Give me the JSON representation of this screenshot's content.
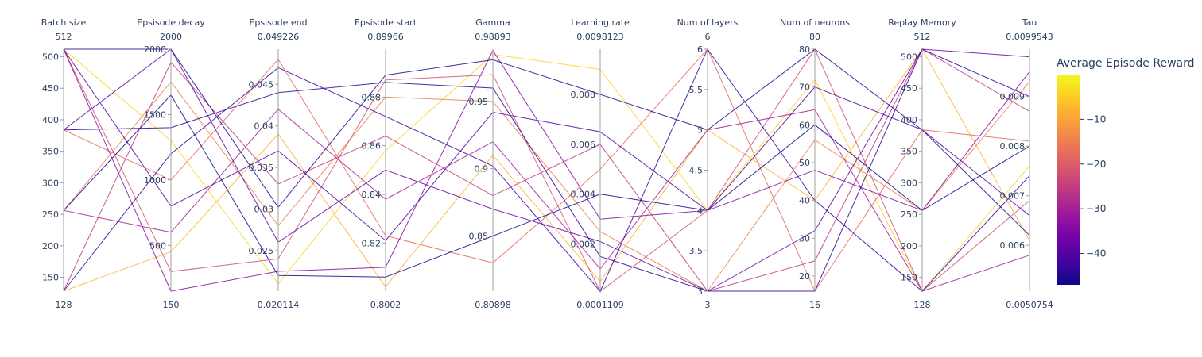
{
  "chart_data": {
    "type": "parallel_coordinates",
    "colorbar": {
      "title": "Average Episode Reward",
      "ticks": [
        "−10",
        "−20",
        "−30",
        "−40"
      ],
      "tick_values": [
        -10,
        -20,
        -30,
        -40
      ],
      "range": [
        -47,
        0
      ],
      "colorscale": [
        "#0d0887",
        "#46039f",
        "#7201a8",
        "#9c179e",
        "#bd3786",
        "#d8576b",
        "#ed7953",
        "#fb9f3a",
        "#fdca26",
        "#f0f921"
      ]
    },
    "dimensions": [
      {
        "label": "Batch size",
        "range": [
          128,
          512
        ],
        "max_label": "512",
        "min_label": "128",
        "ticks": [
          {
            "v": 150,
            "t": "150"
          },
          {
            "v": 200,
            "t": "200"
          },
          {
            "v": 250,
            "t": "250"
          },
          {
            "v": 300,
            "t": "300"
          },
          {
            "v": 350,
            "t": "350"
          },
          {
            "v": 400,
            "t": "400"
          },
          {
            "v": 450,
            "t": "450"
          },
          {
            "v": 500,
            "t": "500"
          }
        ]
      },
      {
        "label": "Epsisode decay",
        "range": [
          150,
          2000
        ],
        "max_label": "2000",
        "min_label": "150",
        "ticks": [
          {
            "v": 500,
            "t": "500"
          },
          {
            "v": 1000,
            "t": "1000"
          },
          {
            "v": 1500,
            "t": "1500"
          },
          {
            "v": 2000,
            "t": "2000"
          }
        ]
      },
      {
        "label": "Epsisode end",
        "range": [
          0.020114,
          0.049226
        ],
        "max_label": "0.049226",
        "min_label": "0.020114",
        "ticks": [
          {
            "v": 0.025,
            "t": "0.025"
          },
          {
            "v": 0.03,
            "t": "0.03"
          },
          {
            "v": 0.035,
            "t": "0.035"
          },
          {
            "v": 0.04,
            "t": "0.04"
          },
          {
            "v": 0.045,
            "t": "0.045"
          }
        ]
      },
      {
        "label": "Epsisode start",
        "range": [
          0.8002,
          0.89966
        ],
        "max_label": "0.89966",
        "min_label": "0.8002",
        "ticks": [
          {
            "v": 0.82,
            "t": "0.82"
          },
          {
            "v": 0.84,
            "t": "0.84"
          },
          {
            "v": 0.86,
            "t": "0.86"
          },
          {
            "v": 0.88,
            "t": "0.88"
          }
        ]
      },
      {
        "label": "Gamma",
        "range": [
          0.80898,
          0.98893
        ],
        "max_label": "0.98893",
        "min_label": "0.80898",
        "ticks": [
          {
            "v": 0.85,
            "t": "0.85"
          },
          {
            "v": 0.9,
            "t": "0.9"
          },
          {
            "v": 0.95,
            "t": "0.95"
          }
        ]
      },
      {
        "label": "Learning rate",
        "range": [
          0.0001109,
          0.0098123
        ],
        "max_label": "0.0098123",
        "min_label": "0.0001109",
        "ticks": [
          {
            "v": 0.002,
            "t": "0.002"
          },
          {
            "v": 0.004,
            "t": "0.004"
          },
          {
            "v": 0.006,
            "t": "0.006"
          },
          {
            "v": 0.008,
            "t": "0.008"
          }
        ]
      },
      {
        "label": "Num of layers",
        "range": [
          3,
          6
        ],
        "max_label": "6",
        "min_label": "3",
        "ticks": [
          {
            "v": 3,
            "t": "3"
          },
          {
            "v": 3.5,
            "t": "3.5"
          },
          {
            "v": 4,
            "t": "4"
          },
          {
            "v": 4.5,
            "t": "4.5"
          },
          {
            "v": 5,
            "t": "5"
          },
          {
            "v": 5.5,
            "t": "5.5"
          },
          {
            "v": 6,
            "t": "6"
          }
        ]
      },
      {
        "label": "Num of neurons",
        "range": [
          16,
          80
        ],
        "max_label": "80",
        "min_label": "16",
        "ticks": [
          {
            "v": 20,
            "t": "20"
          },
          {
            "v": 30,
            "t": "30"
          },
          {
            "v": 40,
            "t": "40"
          },
          {
            "v": 50,
            "t": "50"
          },
          {
            "v": 60,
            "t": "60"
          },
          {
            "v": 70,
            "t": "70"
          },
          {
            "v": 80,
            "t": "80"
          }
        ]
      },
      {
        "label": "Replay Memory",
        "range": [
          128,
          512
        ],
        "max_label": "512",
        "min_label": "128",
        "ticks": [
          {
            "v": 150,
            "t": "150"
          },
          {
            "v": 200,
            "t": "200"
          },
          {
            "v": 250,
            "t": "250"
          },
          {
            "v": 300,
            "t": "300"
          },
          {
            "v": 350,
            "t": "350"
          },
          {
            "v": 400,
            "t": "400"
          },
          {
            "v": 450,
            "t": "450"
          },
          {
            "v": 500,
            "t": "500"
          }
        ]
      },
      {
        "label": "Tau",
        "range": [
          0.0050754,
          0.0099543
        ],
        "max_label": "0.0099543",
        "min_label": "0.0050754",
        "ticks": [
          {
            "v": 0.006,
            "t": "0.006"
          },
          {
            "v": 0.007,
            "t": "0.007"
          },
          {
            "v": 0.008,
            "t": "0.008"
          },
          {
            "v": 0.009,
            "t": "0.009"
          }
        ]
      }
    ],
    "lines": [
      {
        "reward": -45,
        "values": [
          512,
          2000,
          0.0302,
          0.889,
          0.981,
          0.008,
          5,
          80,
          384,
          0.0062
        ]
      },
      {
        "reward": -44,
        "values": [
          384,
          1400,
          0.044,
          0.886,
          0.96,
          0.0015,
          3,
          16,
          512,
          0.009
        ]
      },
      {
        "reward": -46,
        "values": [
          256,
          1650,
          0.022,
          0.806,
          0.85,
          0.004,
          4,
          60,
          256,
          0.008
        ]
      },
      {
        "reward": -43,
        "values": [
          128,
          1200,
          0.047,
          0.872,
          0.902,
          0.0001,
          6,
          40,
          128,
          0.0074
        ]
      },
      {
        "reward": -41,
        "values": [
          512,
          800,
          0.037,
          0.821,
          0.942,
          0.0065,
          4,
          70,
          384,
          0.0066
        ]
      },
      {
        "reward": -38,
        "values": [
          384,
          2000,
          0.026,
          0.85,
          0.87,
          0.0021,
          3,
          32,
          512,
          0.0098
        ]
      },
      {
        "reward": -34,
        "values": [
          512,
          150,
          0.0225,
          0.81,
          0.988,
          0.003,
          4,
          48,
          256,
          0.0095
        ]
      },
      {
        "reward": -30,
        "values": [
          256,
          600,
          0.042,
          0.838,
          0.92,
          0.001,
          5,
          64,
          128,
          0.0058
        ]
      },
      {
        "reward": -26,
        "values": [
          128,
          1900,
          0.033,
          0.864,
          0.88,
          0.006,
          3,
          24,
          512,
          0.0087
        ]
      },
      {
        "reward": -22,
        "values": [
          512,
          300,
          0.024,
          0.887,
          0.97,
          0.0001,
          4,
          80,
          128,
          0.0069
        ]
      },
      {
        "reward": -18,
        "values": [
          384,
          1000,
          0.048,
          0.823,
          0.83,
          0.005,
          6,
          16,
          384,
          0.0081
        ]
      },
      {
        "reward": -15,
        "values": [
          256,
          1750,
          0.028,
          0.88,
          0.95,
          0.0025,
          3,
          56,
          256,
          0.0093
        ]
      },
      {
        "reward": -8,
        "values": [
          128,
          450,
          0.039,
          0.802,
          0.91,
          0.0005,
          5,
          40,
          512,
          0.0061
        ]
      },
      {
        "reward": -4,
        "values": [
          512,
          1300,
          0.021,
          0.858,
          0.985,
          0.009,
          4,
          72,
          128,
          0.0076
        ]
      }
    ]
  }
}
